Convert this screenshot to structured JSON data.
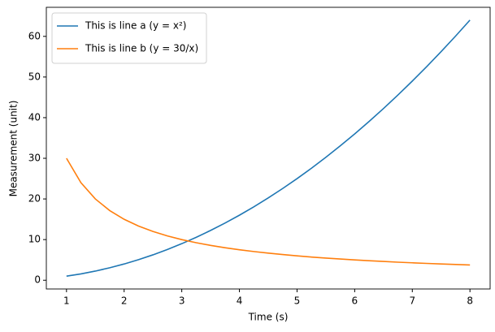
{
  "chart_data": {
    "type": "line",
    "xlabel": "Time (s)",
    "ylabel": "Measurement (unit)",
    "x": [
      1,
      1.25,
      1.5,
      1.75,
      2,
      2.25,
      2.5,
      2.75,
      3,
      3.25,
      3.5,
      3.75,
      4,
      4.25,
      4.5,
      4.75,
      5,
      5.25,
      5.5,
      5.75,
      6,
      6.25,
      6.5,
      6.75,
      7,
      7.25,
      7.5,
      7.75,
      8
    ],
    "series": [
      {
        "name": "This is line a (y = x²)",
        "color": "#1f77b4",
        "values": [
          1,
          1.5625,
          2.25,
          3.0625,
          4,
          5.0625,
          6.25,
          7.5625,
          9,
          10.5625,
          12.25,
          14.0625,
          16,
          18.0625,
          20.25,
          22.5625,
          25,
          27.5625,
          30.25,
          33.0625,
          36,
          39.0625,
          42.25,
          45.5625,
          49,
          52.5625,
          56.25,
          60.0625,
          64
        ]
      },
      {
        "name": "This is line b (y = 30/x)",
        "color": "#ff7f0e",
        "values": [
          30,
          24,
          20,
          17.14,
          15,
          13.33,
          12,
          10.91,
          10,
          9.23,
          8.57,
          8,
          7.5,
          7.06,
          6.67,
          6.32,
          6,
          5.71,
          5.45,
          5.22,
          5,
          4.8,
          4.62,
          4.44,
          4.29,
          4.14,
          4,
          3.87,
          3.75
        ]
      }
    ],
    "xlim": [
      0.65,
      8.35
    ],
    "xticks": [
      1,
      2,
      3,
      4,
      5,
      6,
      7,
      8
    ],
    "ylim": [
      -2.15,
      67.15
    ],
    "yticks": [
      0,
      10,
      20,
      30,
      40,
      50,
      60
    ],
    "legend": "upper left"
  }
}
